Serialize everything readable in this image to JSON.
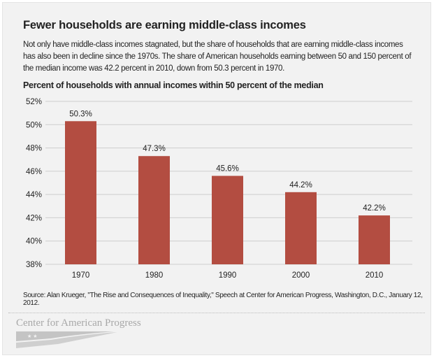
{
  "header": {
    "title": "Fewer households are earning middle-class incomes",
    "description": "Not only have middle-class incomes stagnated, but the share of households that are earning middle-class incomes has also been in decline since the 1970s. The share of American households earning between 50 and 150 percent of the median income was 42.2 percent in 2010, down from 50.3 percent in 1970."
  },
  "chart_data": {
    "type": "bar",
    "title": "Percent of households with annual incomes within 50 percent of the median",
    "categories": [
      "1970",
      "1980",
      "1990",
      "2000",
      "2010"
    ],
    "values": [
      50.3,
      47.3,
      45.6,
      44.2,
      42.2
    ],
    "data_labels": [
      "50.3%",
      "47.3%",
      "45.6%",
      "44.2%",
      "42.2%"
    ],
    "ylim": [
      38,
      52
    ],
    "yticks": [
      38,
      40,
      42,
      44,
      46,
      48,
      50,
      52
    ],
    "ytick_labels": [
      "38%",
      "40%",
      "42%",
      "44%",
      "46%",
      "48%",
      "50%",
      "52%"
    ],
    "grid": true,
    "bar_color": "#b34d41"
  },
  "footer": {
    "source": "Source: Alan Krueger, \"The Rise and Consequences of Inequality,\" Speech at Center for American Progress, Washington, D.C., January 12, 2012.",
    "logo_text": "Center for American Progress"
  }
}
